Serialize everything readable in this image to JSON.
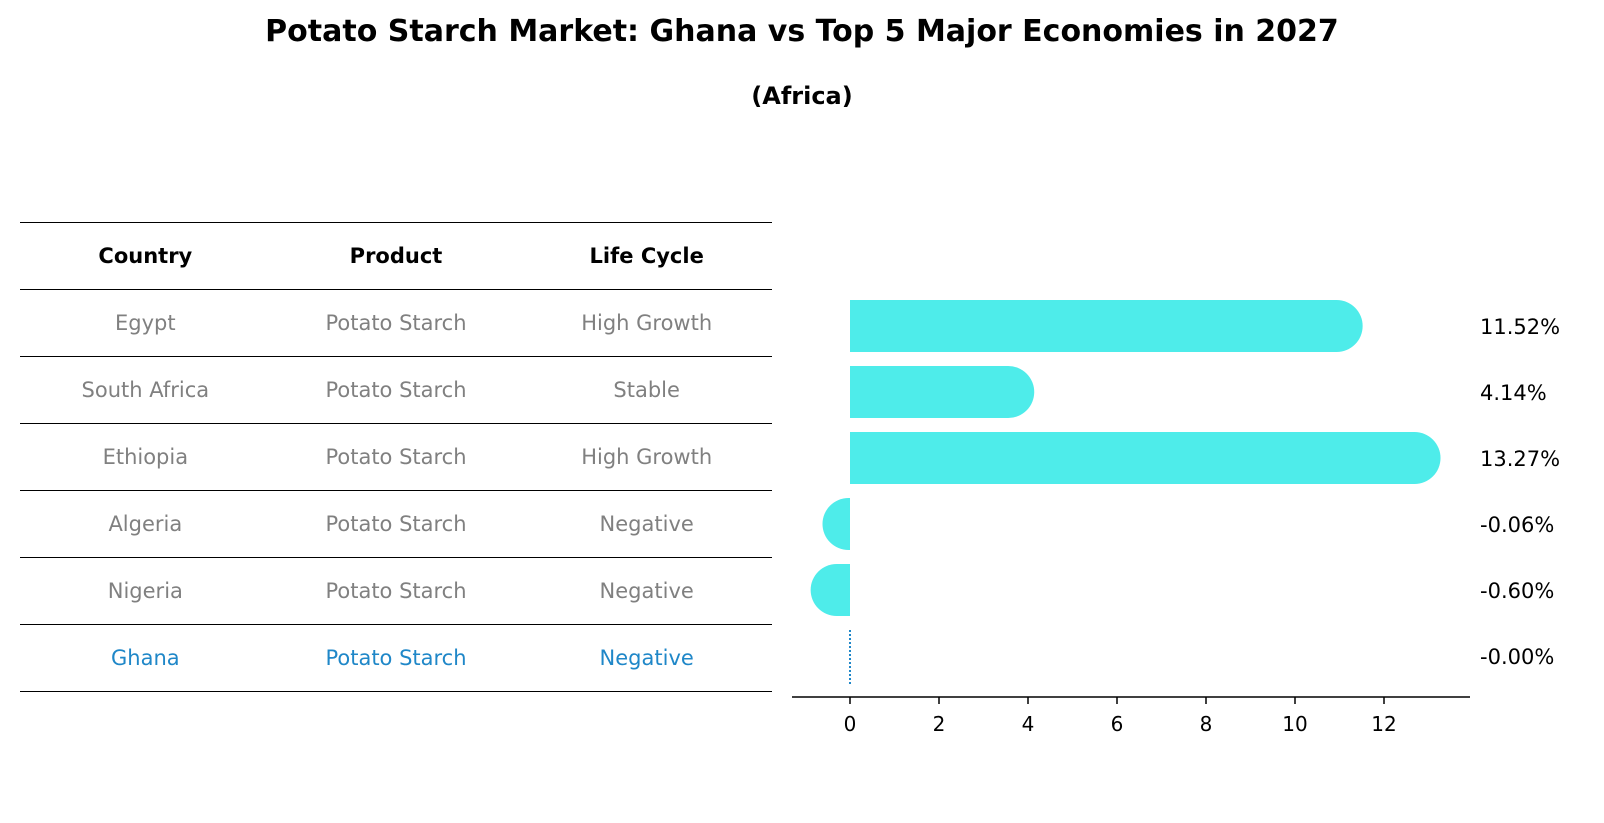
{
  "title": "Potato Starch Market: Ghana vs Top 5 Major Economies in 2027",
  "subtitle": "(Africa)",
  "table": {
    "headers": [
      "Country",
      "Product",
      "Life Cycle"
    ],
    "rows": [
      [
        "Egypt",
        "Potato Starch",
        "High Growth"
      ],
      [
        "South Africa",
        "Potato Starch",
        "Stable"
      ],
      [
        "Ethiopia",
        "Potato Starch",
        "High Growth"
      ],
      [
        "Algeria",
        "Potato Starch",
        "Negative"
      ],
      [
        "Nigeria",
        "Potato Starch",
        "Negative"
      ],
      [
        "Ghana",
        "Potato Starch",
        "Negative"
      ]
    ]
  },
  "chart_data": {
    "type": "bar",
    "orientation": "horizontal",
    "categories": [
      "Egypt",
      "South Africa",
      "Ethiopia",
      "Algeria",
      "Nigeria",
      "Ghana"
    ],
    "values": [
      11.52,
      4.14,
      13.27,
      -0.06,
      -0.6,
      -0.0
    ],
    "labels": [
      "11.52%",
      "4.14%",
      "13.27%",
      "-0.06%",
      "-0.60%",
      "-0.00%"
    ],
    "xticks": [
      0,
      2,
      4,
      6,
      8,
      10,
      12
    ],
    "xlim": [
      -1.3,
      14.0
    ],
    "highlight": "Ghana",
    "colors": {
      "bar": "#4EECEA",
      "highlight": "#1f87c8",
      "text_muted": "#808080"
    }
  }
}
